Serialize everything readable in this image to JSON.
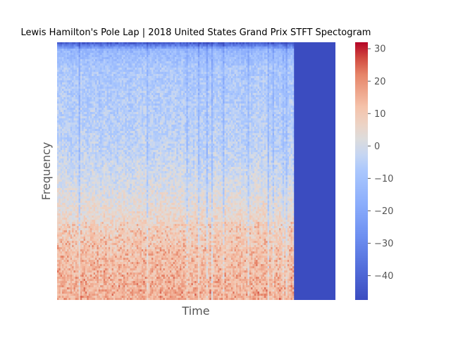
{
  "chart_data": {
    "type": "heatmap",
    "title": "Lewis Hamilton's Pole Lap | 2018 United States Grand Prix STFT Spectogram",
    "xlabel": "Time",
    "ylabel": "Frequency",
    "x_ticks_shown": false,
    "y_ticks_shown": false,
    "grid": false,
    "colormap": "coolwarm",
    "data_extent_fraction_of_time_axis": 0.85,
    "fill_value_after_data": -47.5,
    "colorbar": {
      "position": "right",
      "min": -47.5,
      "max": 32,
      "ticks": [
        30,
        20,
        10,
        0,
        -10,
        -20,
        -30,
        -40
      ],
      "tick_labels": [
        "30",
        "20",
        "10",
        "0",
        "−10",
        "−20",
        "−30",
        "−40"
      ]
    },
    "intensity_profile_by_frequency": {
      "frequency_fraction_from_low": [
        0.0,
        0.1,
        0.2,
        0.3,
        0.45,
        0.6,
        0.75,
        0.9,
        0.97,
        1.0
      ],
      "typical_db": [
        14,
        12,
        10,
        6,
        0,
        -4,
        -6,
        -8,
        -14,
        -45
      ]
    },
    "colors": {
      "cold": "#3b4cc0",
      "neutral": "#dddddd",
      "warm": "#b40426"
    }
  }
}
